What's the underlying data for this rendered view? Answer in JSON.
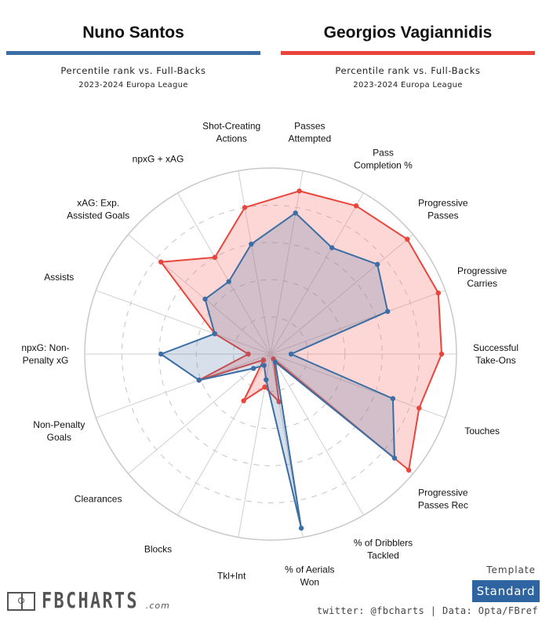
{
  "players": [
    {
      "name": "Nuno Santos",
      "color": "#3a6ea5",
      "fill": "#3a6ea5",
      "subtitle": "Percentile rank vs. Full-Backs",
      "season": "2023-2024 Europa League"
    },
    {
      "name": "Georgios Vagiannidis",
      "color": "#e8453c",
      "fill": "#f7a29d",
      "subtitle": "Percentile rank vs. Full-Backs",
      "season": "2023-2024 Europa League"
    }
  ],
  "chart_data": {
    "type": "radar",
    "title": "Percentile rank vs. Full-Backs",
    "subtitle": "2023-2024 Europa League",
    "range": [
      0,
      100
    ],
    "grid": true,
    "rings": [
      20,
      40,
      60,
      80,
      100
    ],
    "start_axis_direction": "right",
    "rotation": "counter-clockwise",
    "categories": [
      "Successful Take-Ons",
      "Progressive Carries",
      "Progressive Passes",
      "Pass Completion %",
      "Passes Attempted",
      "Shot-Creating Actions",
      "npxG + xAG",
      "xAG: Exp. Assisted Goals",
      "Assists",
      "npxG: Non-Penalty xG",
      "Non-Penalty Goals",
      "Clearances",
      "Blocks",
      "Tkl+Int",
      "% of Aerials Won",
      "% of Dribblers Tackled",
      "Progressive Passes Rec",
      "Touches"
    ],
    "labels": [
      [
        "Successful",
        "Take-Ons"
      ],
      [
        "Progressive",
        "Carries"
      ],
      [
        "Progressive",
        "Passes"
      ],
      [
        "Pass",
        "Completion %"
      ],
      [
        "Passes",
        "Attempted"
      ],
      [
        "Shot-Creating",
        "Actions"
      ],
      [
        "npxG + xAG"
      ],
      [
        "xAG: Exp.",
        "Assisted Goals"
      ],
      [
        "Assists"
      ],
      [
        "npxG: Non-",
        "Penalty xG"
      ],
      [
        "Non-Penalty",
        "Goals"
      ],
      [
        "Clearances"
      ],
      [
        "Blocks"
      ],
      [
        "Tkl+Int"
      ],
      [
        "% of Aerials",
        "Won"
      ],
      [
        "% of Dribblers",
        "Tackled"
      ],
      [
        "Progressive",
        "Passes Rec"
      ],
      [
        "Touches"
      ]
    ],
    "series": [
      {
        "name": "Georgios Vagiannidis",
        "values": [
          92,
          96,
          96,
          92,
          89,
          80,
          60,
          77,
          32,
          12,
          41,
          5,
          29,
          18,
          26,
          3,
          97,
          85
        ]
      },
      {
        "name": "Nuno Santos",
        "values": [
          11,
          67,
          75,
          66,
          77,
          60,
          45,
          46,
          32,
          59,
          41,
          12,
          7,
          14,
          95,
          5,
          87,
          70
        ]
      }
    ]
  },
  "footer": {
    "logo_text": "FBCHARTS",
    "logo_suffix": ".com",
    "template_label": "Template",
    "template_value": "Standard",
    "credits": "twitter: @fbcharts | Data: Opta/FBref"
  }
}
